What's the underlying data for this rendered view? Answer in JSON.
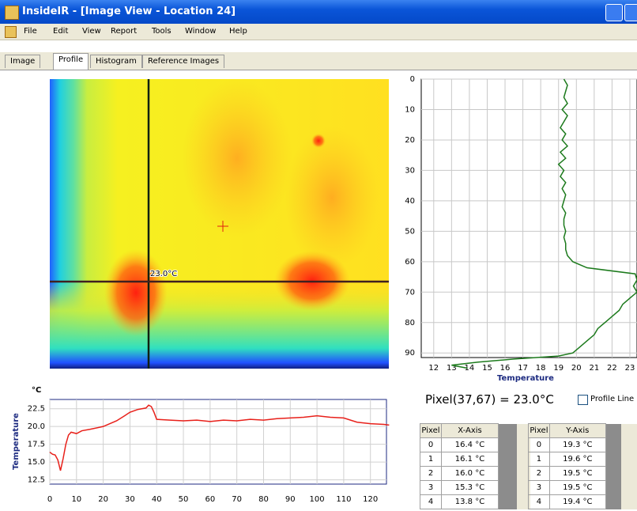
{
  "window": {
    "title": "InsideIR  - [Image View - Location 24]"
  },
  "menu": [
    "File",
    "Edit",
    "View",
    "Report",
    "Tools",
    "Window",
    "Help"
  ],
  "tabs": [
    "Image",
    "Profile",
    "Histogram",
    "Reference Images"
  ],
  "image": {
    "cursor_label": "23.0°C"
  },
  "chart_data": [
    {
      "type": "line",
      "orientation": "vertical",
      "x_label": "Temperature",
      "color": "#1c7a1c",
      "grid": true,
      "pixels": [
        0,
        2,
        4,
        6,
        8,
        10,
        12,
        14,
        16,
        18,
        20,
        22,
        24,
        26,
        28,
        30,
        32,
        34,
        36,
        38,
        40,
        42,
        44,
        46,
        48,
        50,
        52,
        54,
        56,
        58,
        60,
        62,
        64,
        66,
        68,
        70,
        72,
        74,
        76,
        78,
        80,
        82,
        84,
        86,
        88,
        90,
        91,
        92,
        93,
        94,
        95
      ],
      "values": [
        19.3,
        19.5,
        19.4,
        19.3,
        19.5,
        19.2,
        19.5,
        19.3,
        19.1,
        19.4,
        19.2,
        19.5,
        19.1,
        19.4,
        19.0,
        19.3,
        19.1,
        19.4,
        19.2,
        19.4,
        19.3,
        19.2,
        19.4,
        19.3,
        19.3,
        19.4,
        19.3,
        19.4,
        19.4,
        19.5,
        19.8,
        20.6,
        23.3,
        23.4,
        23.2,
        23.4,
        23.0,
        22.6,
        22.4,
        22.0,
        21.6,
        21.2,
        21.0,
        20.6,
        20.2,
        19.8,
        19.0,
        16.5,
        14.5,
        13.0,
        13.9
      ],
      "xlim": [
        11.3,
        23.4
      ],
      "xticks": [
        12,
        13,
        14,
        15,
        16,
        17,
        18,
        19,
        20,
        21,
        22,
        23
      ],
      "ylim": [
        0,
        91.5
      ],
      "yticks": [
        0,
        10,
        20,
        30,
        40,
        50,
        60,
        70,
        80,
        90
      ]
    },
    {
      "type": "line",
      "orientation": "horizontal",
      "unit": "°C",
      "y_label": "Temperature",
      "color": "#e8201a",
      "grid": true,
      "x": [
        0,
        1,
        2,
        3,
        4,
        5,
        6,
        7,
        8,
        10,
        12,
        15,
        20,
        25,
        28,
        30,
        33,
        36,
        37,
        38,
        39,
        40,
        45,
        50,
        55,
        60,
        65,
        70,
        75,
        80,
        85,
        90,
        95,
        100,
        105,
        110,
        115,
        120,
        125,
        127
      ],
      "values": [
        16.4,
        16.1,
        16.0,
        15.3,
        13.8,
        15.5,
        17.5,
        18.8,
        19.2,
        19.0,
        19.4,
        19.6,
        20.0,
        20.8,
        21.5,
        22.0,
        22.4,
        22.6,
        23.0,
        22.8,
        22.0,
        21.0,
        20.9,
        20.8,
        20.9,
        20.7,
        20.9,
        20.8,
        21.0,
        20.9,
        21.1,
        21.2,
        21.3,
        21.5,
        21.3,
        21.2,
        20.6,
        20.4,
        20.3,
        20.2
      ],
      "xlim": [
        0,
        126
      ],
      "xticks": [
        0,
        10,
        20,
        30,
        40,
        50,
        60,
        70,
        80,
        90,
        100,
        110,
        120
      ],
      "ylim": [
        11.9,
        23.8
      ],
      "yticks": [
        12.5,
        {
          "value": 15,
          "label": "15.0"
        },
        17.5,
        {
          "value": 20,
          "label": "20.0"
        },
        22.5
      ]
    }
  ],
  "readout": {
    "pixel_value": "Pixel(37,67) = 23.0°C",
    "profile_line": "Profile Line"
  },
  "tables": [
    {
      "columns": [
        "Pixel",
        "X-Axis"
      ],
      "rows": [
        [
          "0",
          "16.4 °C"
        ],
        [
          "1",
          "16.1 °C"
        ],
        [
          "2",
          "16.0 °C"
        ],
        [
          "3",
          "15.3 °C"
        ],
        [
          "4",
          "13.8 °C"
        ]
      ]
    },
    {
      "columns": [
        "Pixel",
        "Y-Axis"
      ],
      "rows": [
        [
          "0",
          "19.3 °C"
        ],
        [
          "1",
          "19.6 °C"
        ],
        [
          "2",
          "19.5 °C"
        ],
        [
          "3",
          "19.5 °C"
        ],
        [
          "4",
          "19.4 °C"
        ]
      ]
    }
  ]
}
